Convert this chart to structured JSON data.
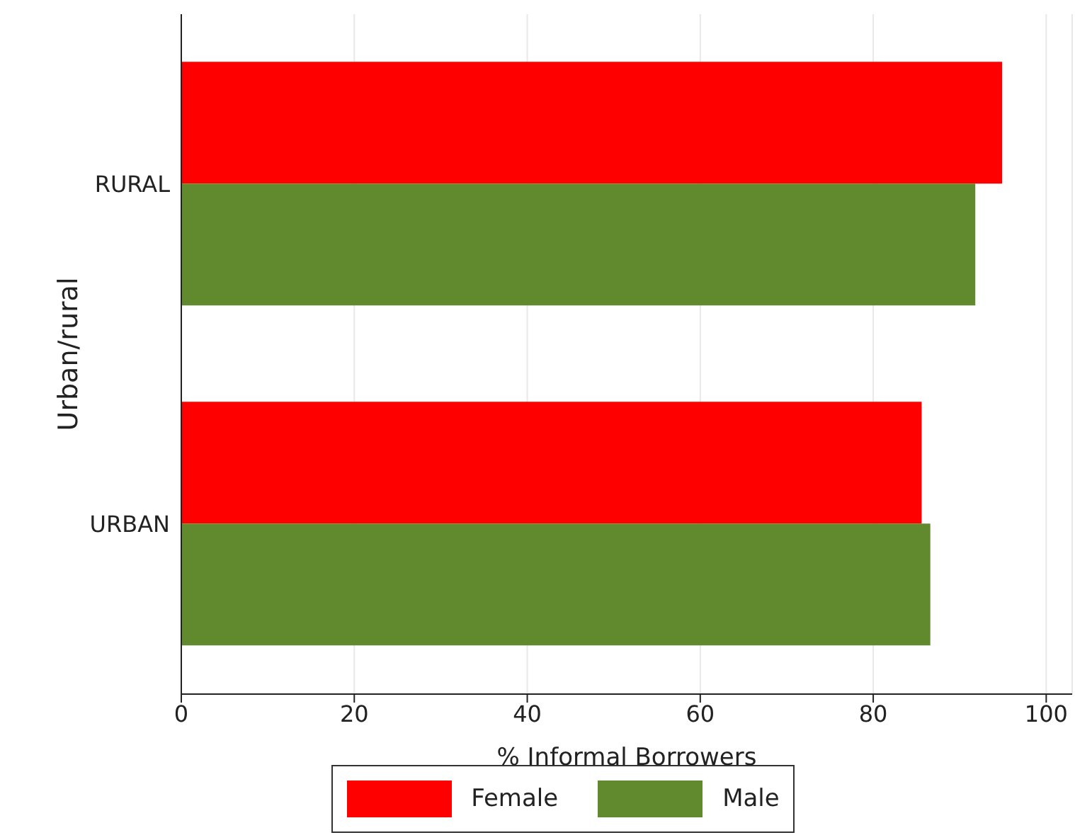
{
  "chart_data": {
    "type": "bar",
    "orientation": "horizontal",
    "xlabel": "% Informal Borrowers",
    "ylabel": "Urban/rural",
    "categories": [
      "RURAL",
      "URBAN"
    ],
    "series": [
      {
        "name": "Female",
        "color": "#ff0000",
        "values": [
          94.9,
          85.6
        ]
      },
      {
        "name": "Male",
        "color": "#618a2f",
        "values": [
          91.8,
          86.6
        ]
      }
    ],
    "xlim": [
      0,
      103
    ],
    "xticks": [
      0,
      20,
      40,
      60,
      80,
      100
    ],
    "grid": "x",
    "legend": "bottom"
  }
}
